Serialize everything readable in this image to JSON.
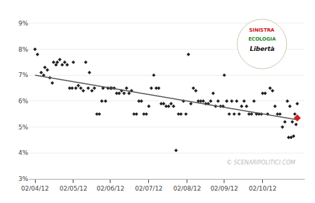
{
  "chart_data": {
    "type": "scatter",
    "xlim": [
      -5,
      218
    ],
    "xticks": [
      {
        "value": 0,
        "label": "02/04/12"
      },
      {
        "value": 31,
        "label": "02/05/12"
      },
      {
        "value": 61,
        "label": "02/06/12"
      },
      {
        "value": 92,
        "label": "02/07/12"
      },
      {
        "value": 123,
        "label": "02/08/12"
      },
      {
        "value": 153,
        "label": "02/09/12"
      },
      {
        "value": 184,
        "label": "02/10/12"
      }
    ],
    "ylim": [
      3.0,
      9.5
    ],
    "yticks": [
      {
        "value": 3,
        "label": "3%"
      },
      {
        "value": 4,
        "label": "4%"
      },
      {
        "value": 5,
        "label": "5%"
      },
      {
        "value": 6,
        "label": "6%"
      },
      {
        "value": 7,
        "label": "7%"
      },
      {
        "value": 8,
        "label": "8%"
      },
      {
        "value": 9,
        "label": "9%"
      }
    ],
    "grid": true,
    "series": [
      {
        "type": "scatter",
        "color": "#222222",
        "marker": "diamond",
        "x": [
          0,
          2,
          5,
          7,
          8,
          10,
          12,
          14,
          15,
          17,
          18,
          20,
          22,
          24,
          26,
          28,
          30,
          31,
          33,
          35,
          37,
          39,
          41,
          43,
          44,
          46,
          48,
          50,
          52,
          54,
          55,
          57,
          59,
          61,
          62,
          64,
          66,
          68,
          70,
          72,
          74,
          76,
          78,
          80,
          82,
          84,
          86,
          88,
          90,
          92,
          94,
          96,
          98,
          100,
          102,
          104,
          106,
          108,
          110,
          112,
          114,
          116,
          118,
          120,
          122,
          124,
          126,
          128,
          130,
          132,
          134,
          136,
          138,
          140,
          142,
          144,
          146,
          148,
          150,
          152,
          153,
          155,
          157,
          159,
          161,
          163,
          165,
          167,
          169,
          171,
          173,
          175,
          177,
          179,
          181,
          183,
          184,
          186,
          188,
          190,
          192,
          194,
          196,
          198,
          200,
          202,
          204,
          206,
          208,
          210,
          205,
          207,
          209,
          211,
          212
        ],
        "values": [
          8.0,
          7.8,
          7.1,
          7.0,
          7.3,
          7.2,
          6.9,
          6.7,
          7.5,
          7.4,
          7.5,
          7.6,
          7.4,
          7.5,
          7.4,
          6.5,
          6.5,
          7.5,
          6.5,
          6.6,
          6.5,
          6.4,
          7.5,
          6.5,
          7.1,
          6.4,
          6.5,
          5.5,
          5.5,
          6.0,
          6.5,
          6.0,
          6.5,
          6.5,
          6.5,
          6.5,
          6.3,
          6.3,
          6.4,
          6.3,
          6.5,
          6.3,
          6.4,
          5.5,
          5.5,
          6.0,
          6.0,
          5.5,
          5.5,
          5.8,
          6.5,
          7.0,
          6.5,
          6.5,
          5.9,
          5.9,
          5.8,
          5.8,
          5.9,
          5.8,
          4.1,
          5.5,
          5.5,
          6.0,
          5.5,
          7.8,
          5.9,
          6.5,
          6.4,
          6.0,
          6.0,
          6.0,
          5.9,
          5.9,
          6.0,
          6.3,
          5.8,
          6.0,
          5.8,
          5.8,
          7.0,
          6.0,
          5.5,
          6.0,
          5.5,
          6.0,
          5.5,
          5.8,
          6.0,
          5.8,
          5.5,
          5.5,
          6.0,
          5.5,
          5.5,
          5.5,
          6.3,
          6.3,
          5.5,
          6.5,
          6.4,
          5.8,
          5.5,
          5.5,
          5.0,
          5.2,
          6.0,
          5.8,
          5.2,
          5.5,
          4.6,
          4.6,
          4.65,
          5.1,
          5.9
        ]
      },
      {
        "type": "line",
        "color": "#555555",
        "line_style": "solid",
        "x": [
          0,
          212
        ],
        "values": [
          7.0,
          5.28
        ]
      },
      {
        "type": "scatter",
        "color": "#cc2222",
        "marker": "diamond",
        "x": [
          212
        ],
        "values": [
          5.35
        ]
      }
    ],
    "annotations": [
      {
        "text": "© SCENARIPOLITICI.COM",
        "color": "#bbbbbb"
      },
      {
        "text": "SINISTRA",
        "color": "#cc1111"
      },
      {
        "text": "ECOLOGIA",
        "color": "#228822"
      },
      {
        "text": "Libertà",
        "color": "#111111"
      }
    ]
  }
}
